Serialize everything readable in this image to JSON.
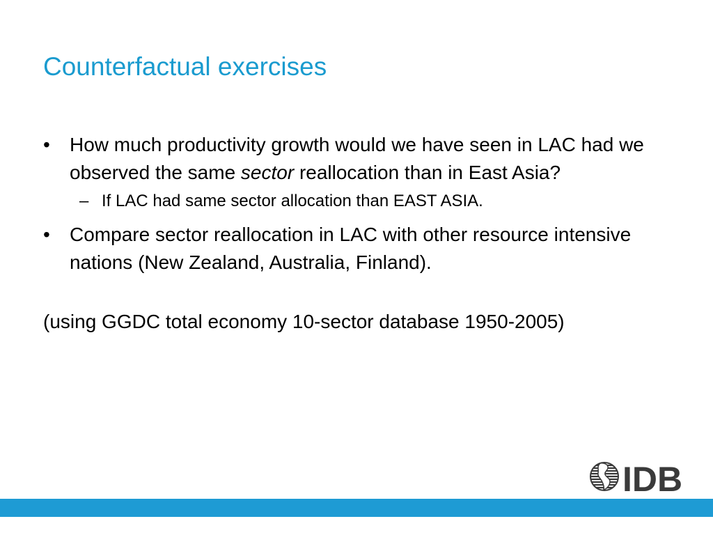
{
  "slide": {
    "title": "Counterfactual exercises",
    "bullet_marker": "•",
    "sub_bullet_marker": "–",
    "bullets": [
      {
        "text_before": "How much productivity growth would we have seen in LAC had we observed the same ",
        "emphasis": "sector",
        "text_after": " reallocation than in East Asia?",
        "sub_bullets": [
          "If LAC had same sector allocation than EAST ASIA."
        ]
      },
      {
        "text": "Compare sector reallocation in LAC with other resource intensive nations (New Zealand, Australia, Finland)."
      }
    ],
    "note": "(using GGDC total economy 10-sector database 1950-2005)"
  },
  "logo": {
    "text": "IDB",
    "icon": "globe-icon"
  },
  "colors": {
    "title": "#1a9bcf",
    "footer_bar": "#1e9bd4",
    "logo_dark": "#3a3a3a"
  }
}
